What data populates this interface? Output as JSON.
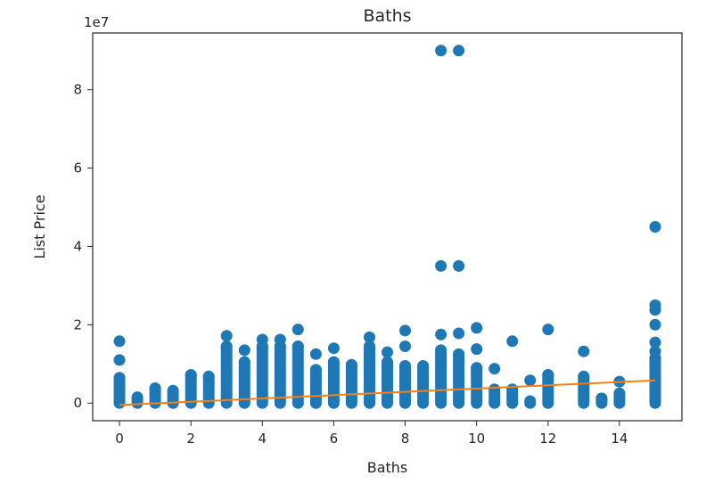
{
  "chart_data": {
    "type": "scatter",
    "title": "Baths",
    "xlabel": "Baths",
    "ylabel": "List Price",
    "y_offset_label": "1e7",
    "xlim": [
      -0.75,
      15.75
    ],
    "ylim": [
      -0.45,
      9.45
    ],
    "y_unit_multiplier": 10000000,
    "xticks": [
      0,
      2,
      4,
      6,
      8,
      10,
      12,
      14
    ],
    "yticks": [
      0,
      2,
      4,
      6,
      8
    ],
    "grid": false,
    "legend": "none",
    "colors": {
      "points": "#1f77b4",
      "fit_line": "#ff7f0e",
      "axes": "#262626"
    },
    "series": [
      {
        "type": "scatter",
        "columns": [
          {
            "x": 0,
            "top": 0.65,
            "extra": [
              1.1,
              1.58
            ]
          },
          {
            "x": 0.5,
            "top": 0.15,
            "extra": []
          },
          {
            "x": 1,
            "top": 0.38,
            "extra": []
          },
          {
            "x": 1.5,
            "top": 0.32,
            "extra": []
          },
          {
            "x": 2,
            "top": 0.72,
            "extra": []
          },
          {
            "x": 2.5,
            "top": 0.68,
            "extra": []
          },
          {
            "x": 3,
            "top": 1.45,
            "extra": [
              1.72
            ]
          },
          {
            "x": 3.5,
            "top": 1.05,
            "extra": [
              1.35
            ]
          },
          {
            "x": 4,
            "top": 1.45,
            "extra": [
              1.62
            ]
          },
          {
            "x": 4.5,
            "top": 1.45,
            "extra": [
              1.62
            ]
          },
          {
            "x": 5,
            "top": 1.45,
            "extra": [
              1.88
            ]
          },
          {
            "x": 5.5,
            "top": 0.85,
            "extra": [
              1.25
            ]
          },
          {
            "x": 6,
            "top": 1.05,
            "extra": [
              1.4
            ]
          },
          {
            "x": 6.5,
            "top": 0.98,
            "extra": []
          },
          {
            "x": 7,
            "top": 1.45,
            "extra": [
              1.68
            ]
          },
          {
            "x": 7.5,
            "top": 1.05,
            "extra": [
              1.3
            ]
          },
          {
            "x": 8,
            "top": 0.95,
            "extra": [
              1.45,
              1.85
            ]
          },
          {
            "x": 8.5,
            "top": 0.95,
            "extra": []
          },
          {
            "x": 9,
            "top": 1.35,
            "extra": [
              1.75,
              3.5,
              9.0
            ]
          },
          {
            "x": 9.5,
            "top": 1.25,
            "extra": [
              1.78,
              3.5,
              9.0
            ]
          },
          {
            "x": 10,
            "top": 0.9,
            "extra": [
              1.38,
              1.92
            ]
          },
          {
            "x": 10.5,
            "top": 0.35,
            "extra": [
              0.88
            ]
          },
          {
            "x": 11,
            "top": 0.35,
            "extra": [
              1.58
            ]
          },
          {
            "x": 11.5,
            "top": 0.05,
            "extra": [
              0.58
            ]
          },
          {
            "x": 12,
            "top": 0.72,
            "extra": [
              1.88
            ]
          },
          {
            "x": 13,
            "top": 0.68,
            "extra": [
              1.32
            ]
          },
          {
            "x": 13.5,
            "top": 0.12,
            "extra": []
          },
          {
            "x": 14,
            "top": 0.25,
            "extra": [
              0.55
            ]
          },
          {
            "x": 15,
            "top": 1.15,
            "extra": [
              1.32,
              1.55,
              2.0,
              2.38,
              2.5,
              4.5
            ]
          }
        ]
      },
      {
        "type": "line",
        "x": [
          0,
          15
        ],
        "y": [
          -0.05,
          0.58
        ]
      }
    ]
  }
}
